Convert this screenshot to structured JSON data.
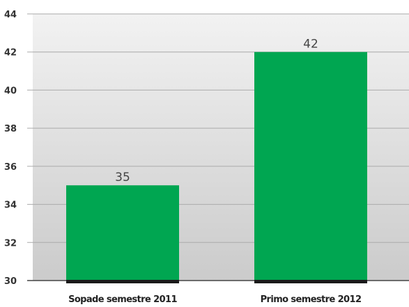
{
  "chart_data": {
    "type": "bar",
    "categories": [
      "Sopade semestre 2011",
      "Primo semestre 2012"
    ],
    "values": [
      35,
      42
    ],
    "data_labels": [
      "35",
      "42"
    ],
    "y_ticks": [
      30,
      32,
      34,
      36,
      38,
      40,
      42,
      44
    ],
    "y_tick_labels": [
      "30",
      "32",
      "34",
      "36",
      "38",
      "40",
      "42",
      "44"
    ],
    "ylim": [
      30,
      44
    ],
    "grid": true,
    "legend": "none",
    "bar_color": "#00a651",
    "bar_edge_color": "#1a1a1a",
    "background_gradient": [
      "#f2f2f2",
      "#cbcbcb"
    ],
    "grid_color": "#aaaaaa",
    "title": "",
    "xlabel": "",
    "ylabel": ""
  }
}
